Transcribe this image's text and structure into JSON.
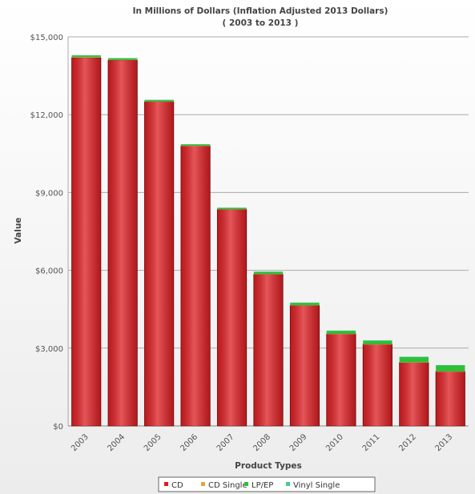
{
  "chart_data": {
    "type": "bar",
    "stacked": true,
    "title": "In Millions of Dollars (Inflation Adjusted 2013 Dollars)",
    "subtitle": "( 2003 to 2013 )",
    "xlabel": "Product Types",
    "ylabel": "Value",
    "ylim": [
      0,
      15000
    ],
    "yticks": [
      0,
      3000,
      6000,
      9000,
      12000,
      15000
    ],
    "ytick_labels": [
      "$0",
      "$3,000",
      "$6,000",
      "$9,000",
      "$12,000",
      "$15,000"
    ],
    "grid": true,
    "legend_position": "bottom",
    "categories": [
      "2003",
      "2004",
      "2005",
      "2006",
      "2007",
      "2008",
      "2009",
      "2010",
      "2011",
      "2012",
      "2013"
    ],
    "series": [
      {
        "name": "CD",
        "color": "#dd1e22",
        "values": [
          14200,
          14100,
          12500,
          10800,
          8350,
          5850,
          4650,
          3550,
          3150,
          2450,
          2100
        ]
      },
      {
        "name": "CD Single",
        "color": "#e8a33a",
        "values": [
          20,
          15,
          10,
          5,
          5,
          5,
          3,
          3,
          2,
          2,
          2
        ]
      },
      {
        "name": "LP/EP",
        "color": "#2fbf3a",
        "values": [
          60,
          60,
          55,
          50,
          55,
          90,
          100,
          120,
          140,
          210,
          240
        ]
      },
      {
        "name": "Vinyl Single",
        "color": "#3fd28a",
        "values": [
          10,
          8,
          8,
          6,
          6,
          5,
          5,
          5,
          5,
          5,
          5
        ]
      }
    ]
  }
}
